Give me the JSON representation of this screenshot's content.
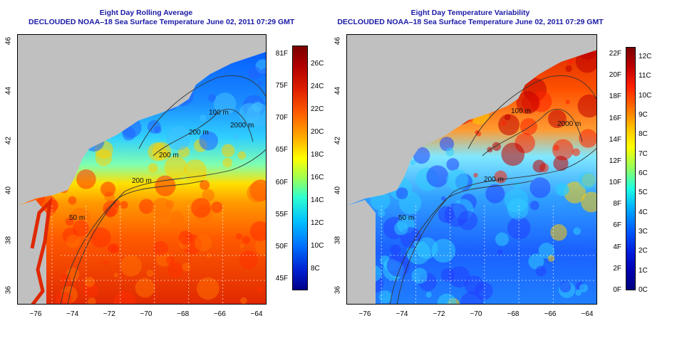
{
  "panels": [
    {
      "id": "rolling",
      "title": "Eight Day Rolling Average",
      "subtitle": "DECLOUDED NOAA–18 Sea Surface Temperature June 02, 2011 07:29 GMT",
      "lat_ticks": [
        "36",
        "38",
        "40",
        "42",
        "44",
        "46"
      ],
      "lon_ticks": [
        "−76",
        "−74",
        "−72",
        "−70",
        "−68",
        "−66",
        "−64"
      ],
      "contour_labels": [
        "100 m",
        "200 m",
        "200 m",
        "2000 m",
        "50 m",
        "200 m"
      ],
      "colorbar": {
        "left_labels": [
          "81F",
          "75F",
          "70F",
          "65F",
          "60F",
          "55F",
          "50F",
          "45F"
        ],
        "right_labels": [
          "26C",
          "24C",
          "22C",
          "20C",
          "18C",
          "16C",
          "14C",
          "12C",
          "10C",
          "8C"
        ]
      }
    },
    {
      "id": "variability",
      "title": "Eight Day Temperature Variability",
      "subtitle": "DECLOUDED NOAA–18 Sea Surface Temperature June 02, 2011 07:29 GMT",
      "lat_ticks": [
        "36",
        "38",
        "40",
        "42",
        "44",
        "46"
      ],
      "lon_ticks": [
        "−76",
        "−74",
        "−72",
        "−70",
        "−68",
        "−66",
        "−64"
      ],
      "contour_labels": [
        "100 m",
        "2000 m",
        "200 m",
        "50 m"
      ],
      "colorbar": {
        "left_labels": [
          "22F",
          "20F",
          "18F",
          "16F",
          "14F",
          "12F",
          "10F",
          "8F",
          "6F",
          "4F",
          "2F",
          "0F"
        ],
        "right_labels": [
          "12C",
          "11C",
          "10C",
          "9C",
          "8C",
          "7C",
          "6C",
          "5C",
          "4C",
          "3C",
          "2C",
          "1C",
          "0C"
        ]
      }
    }
  ],
  "colors": {
    "land": "#c0c0c0",
    "title": "#1a1aa6",
    "contour": "#333333"
  }
}
